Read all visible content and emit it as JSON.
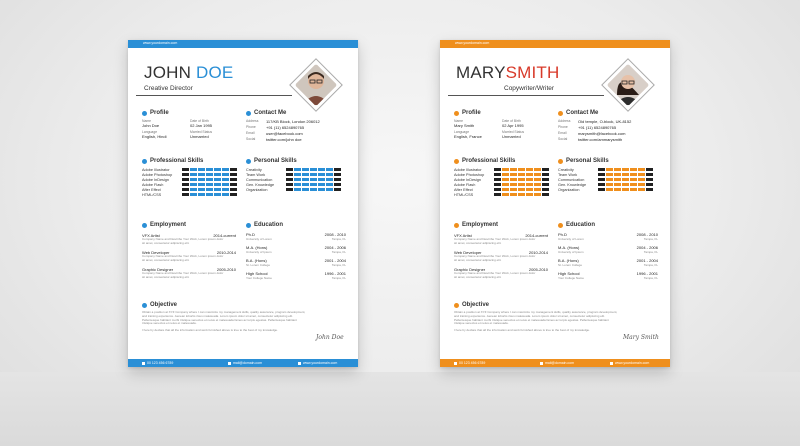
{
  "resumes": [
    {
      "id": "john",
      "accent": "#2a8fd6",
      "header_url": "www.yourdomain.com",
      "first_name": "JOHN",
      "last_name": "DOE",
      "role": "Creative Director",
      "profile": {
        "heading": "Profile",
        "name_label": "Name",
        "name_value": "John Doe",
        "dob_label": "Date of Birth",
        "dob_value": "02 Jan 1995",
        "language_label": "Language",
        "language_value": "English, Hindi",
        "marital_label": "Married Status",
        "marital_value": "Unmarried"
      },
      "contact": {
        "heading": "Contact Me",
        "address_label": "Address",
        "address_value": "117/KB Block, London 206012",
        "phone_label": "Phone",
        "phone_value": "+91 (11) 6524890765",
        "email_label": "Email",
        "email_value": "user@facebook.com",
        "social_label": "Social",
        "social_value": "twitter.com/john doe"
      },
      "professional_skills": {
        "heading": "Professional Skills",
        "items": [
          {
            "label": "Adobe Illustrator",
            "level": 0.85
          },
          {
            "label": "Adobe Photoshop",
            "level": 0.85
          },
          {
            "label": "Adobe InDesign",
            "level": 0.85
          },
          {
            "label": "Adobe Flash",
            "level": 0.85
          },
          {
            "label": "After Effect",
            "level": 0.85
          },
          {
            "label": "HTML/CSS",
            "level": 0.85
          }
        ]
      },
      "personal_skills": {
        "heading": "Personal Skills",
        "items": [
          {
            "label": "Creativity",
            "level": 0.85
          },
          {
            "label": "Team Work",
            "level": 0.85
          },
          {
            "label": "Communication",
            "level": 0.85
          },
          {
            "label": "Gen. Knowledge",
            "level": 0.85
          },
          {
            "label": "Organization",
            "level": 0.85
          }
        ]
      },
      "employment": {
        "heading": "Employment",
        "items": [
          {
            "title": "VFX Artist",
            "date": "2014-current",
            "line1": "Company Name and Describe Your Work, Lorem ipsum dolor",
            "line2": "sit amet, consectetur adipiscing elit."
          },
          {
            "title": "Web Developer",
            "date": "2010-2014",
            "line1": "Company Name and Describe Your Work, Lorem ipsum dolor",
            "line2": "sit amet, consectetur adipiscing elit."
          },
          {
            "title": "Graphic Designer",
            "date": "2005-2010",
            "line1": "Company Name and Describe Your Work, Lorem ipsum dolor",
            "line2": "sit amet, consectetur adipiscing elit."
          }
        ]
      },
      "education": {
        "heading": "Education",
        "items": [
          {
            "degree": "Ph.D",
            "years": "2008 - 2010",
            "school": "University of Lorem",
            "place": "Tampa, FL"
          },
          {
            "degree": "M.A. (Hons)",
            "years": "2004 - 2006",
            "school": "University of Ipsum",
            "place": "Tampa, FL"
          },
          {
            "degree": "B.A. (Hons)",
            "years": "2001 - 2004",
            "school": "St. Lorem College",
            "place": "Tampa, FL"
          },
          {
            "degree": "High School",
            "years": "1996 - 2001",
            "school": "Your College Name",
            "place": "Tampa, FL"
          }
        ]
      },
      "objective": {
        "heading": "Objective",
        "line1": "Obtain a position at XYZ Company where I can maximize my management skills, quality assurance, program development,",
        "line2": "and training experience. Aenean lobortis risus malesuada. Lorem ipsum dolor sit amet, consectetur adipiscing elit.",
        "line3": "Pellentesque habitant morbi tristique senectus et netus et malesuada fames ac turpis egestas. Pellentesque habitant",
        "line4": "tristique senectus et netus et malesuada.",
        "declaration": "I here by declare that all the information and work furnished above is true to the best of my knowledge."
      },
      "signature": "John Doe",
      "footer": {
        "phone": "00 123 456 6789",
        "email": "mail@domain.com",
        "web": "www.yourdomain.com"
      }
    },
    {
      "id": "mary",
      "accent": "#ef8f1d",
      "header_url": "www.yourdomain.com",
      "first_name": "MARY",
      "last_name": "SMITH",
      "role": "Copywriter/Writer",
      "profile": {
        "heading": "Profile",
        "name_label": "Name",
        "name_value": "Mary Smith",
        "dob_label": "Date of Birth",
        "dob_value": "02 Apr 1995",
        "language_label": "Language",
        "language_value": "English, France",
        "marital_label": "Married Status",
        "marital_value": "Unmarried"
      },
      "contact": {
        "heading": "Contact Me",
        "address_label": "Address",
        "address_value": "Old temple, O-block, UK-8152",
        "phone_label": "Phone",
        "phone_value": "+91 (11) 6524890765",
        "email_label": "Email",
        "email_value": "marysmith@facebook.com",
        "social_label": "Social",
        "social_value": "twitter.com/ammarysmith"
      },
      "professional_skills": {
        "heading": "Professional Skills",
        "items": [
          {
            "label": "Adobe Illustrator",
            "level": 0.85
          },
          {
            "label": "Adobe Photoshop",
            "level": 0.85
          },
          {
            "label": "Adobe InDesign",
            "level": 0.85
          },
          {
            "label": "Adobe Flash",
            "level": 0.85
          },
          {
            "label": "After Effect",
            "level": 0.85
          },
          {
            "label": "HTML/CSS",
            "level": 0.85
          }
        ]
      },
      "personal_skills": {
        "heading": "Personal Skills",
        "items": [
          {
            "label": "Creativity",
            "level": 0.85
          },
          {
            "label": "Team Work",
            "level": 0.85
          },
          {
            "label": "Communication",
            "level": 0.85
          },
          {
            "label": "Gen. Knowledge",
            "level": 0.85
          },
          {
            "label": "Organization",
            "level": 0.85
          }
        ]
      },
      "employment": {
        "heading": "Employment",
        "items": [
          {
            "title": "VFX Artist",
            "date": "2014-current",
            "line1": "Company Name and Describe Your Work, Lorem ipsum dolor",
            "line2": "sit amet, consectetur adipiscing elit."
          },
          {
            "title": "Web Developer",
            "date": "2010-2014",
            "line1": "Company Name and Describe Your Work, Lorem ipsum dolor",
            "line2": "sit amet, consectetur adipiscing elit."
          },
          {
            "title": "Graphic Designer",
            "date": "2005-2010",
            "line1": "Company Name and Describe Your Work, Lorem ipsum dolor",
            "line2": "sit amet, consectetur adipiscing elit."
          }
        ]
      },
      "education": {
        "heading": "Education",
        "items": [
          {
            "degree": "Ph.D",
            "years": "2008 - 2010",
            "school": "University of Lorem",
            "place": "Tampa, FL"
          },
          {
            "degree": "M.A. (Hons)",
            "years": "2004 - 2006",
            "school": "University of Ipsum",
            "place": "Tampa, FL"
          },
          {
            "degree": "B.A. (Hons)",
            "years": "2001 - 2004",
            "school": "St. Lorem College",
            "place": "Tampa, FL"
          },
          {
            "degree": "High School",
            "years": "1996 - 2001",
            "school": "Your College Name",
            "place": "Tampa, FL"
          }
        ]
      },
      "objective": {
        "heading": "Objective",
        "line1": "Obtain a position at XYZ Company where I can maximize my management skills, quality assurance, program development,",
        "line2": "and training experience. Aenean lobortis risus malesuada. Lorem ipsum dolor sit amet, consectetur adipiscing elit.",
        "line3": "Pellentesque habitant morbi tristique senectus et netus et malesuada fames ac turpis egestas. Pellentesque habitant",
        "line4": "tristique senectus et netus et malesuada.",
        "declaration": "I here by declare that all the information and work furnished above is true to the best of my knowledge."
      },
      "signature": "Mary Smith",
      "footer": {
        "phone": "00 123 456 6789",
        "email": "mail@domain.com",
        "web": "www.yourdomain.com"
      }
    }
  ]
}
